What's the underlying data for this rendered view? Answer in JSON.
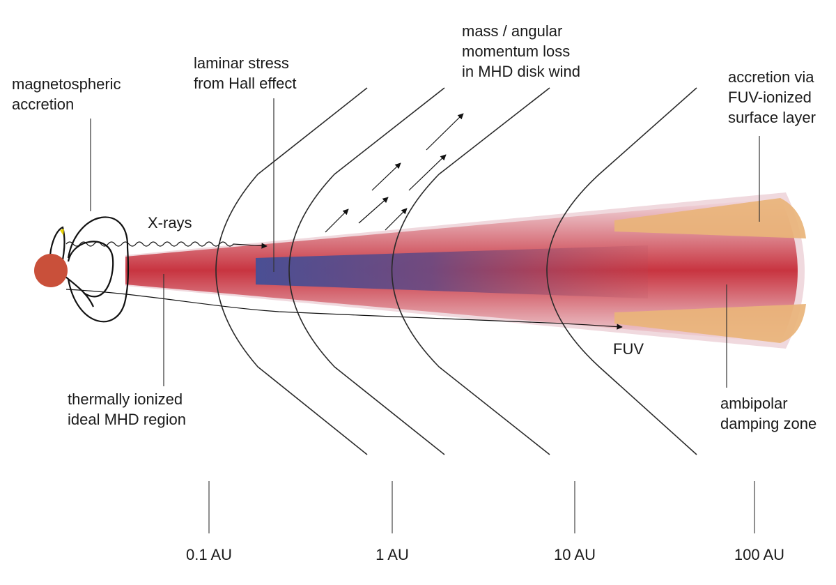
{
  "labels": {
    "magnetospheric": [
      "magnetospheric",
      "accretion"
    ],
    "laminar": [
      "laminar stress",
      "from Hall effect"
    ],
    "wind": [
      "mass / angular",
      "momentum loss",
      "in MHD disk wind"
    ],
    "fuv_accretion": [
      "accretion via",
      "FUV-ionized",
      "surface layer"
    ],
    "xrays": "X-rays",
    "fuv": "FUV",
    "thermal": [
      "thermally ionized",
      "ideal MHD region"
    ],
    "ambipolar": [
      "ambipolar",
      "damping zone"
    ]
  },
  "axis": {
    "ticks": [
      "0.1 AU",
      "1 AU",
      "10 AU",
      "100 AU"
    ]
  },
  "colors": {
    "star": "#c9503a",
    "disk_core": "#c83440",
    "disk_outer": "#e8c6cc",
    "dead_zone": "#4a4f94",
    "surface_layer": "#e8b278"
  }
}
